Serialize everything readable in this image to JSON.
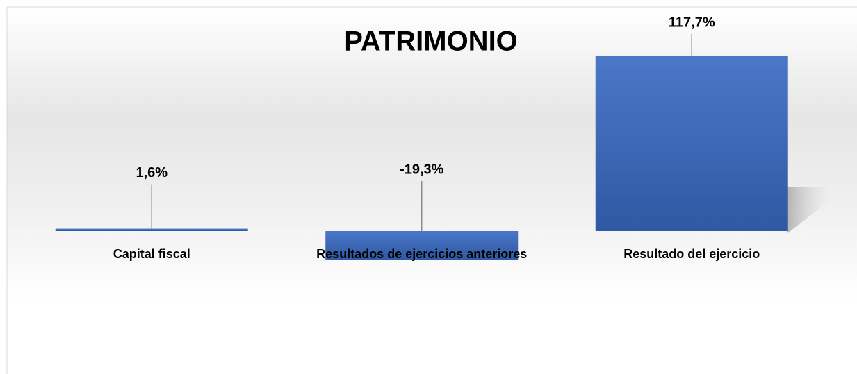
{
  "chart_data": {
    "type": "bar",
    "title": "PATRIMONIO",
    "categories": [
      "Capital fiscal",
      "Resultados de ejercicios anteriores",
      "Resultado del ejercicio"
    ],
    "values": [
      1.6,
      -19.3,
      117.7
    ],
    "value_labels": [
      "1,6%",
      "-19,3%",
      "117,7%"
    ],
    "color": "#4472c4"
  }
}
